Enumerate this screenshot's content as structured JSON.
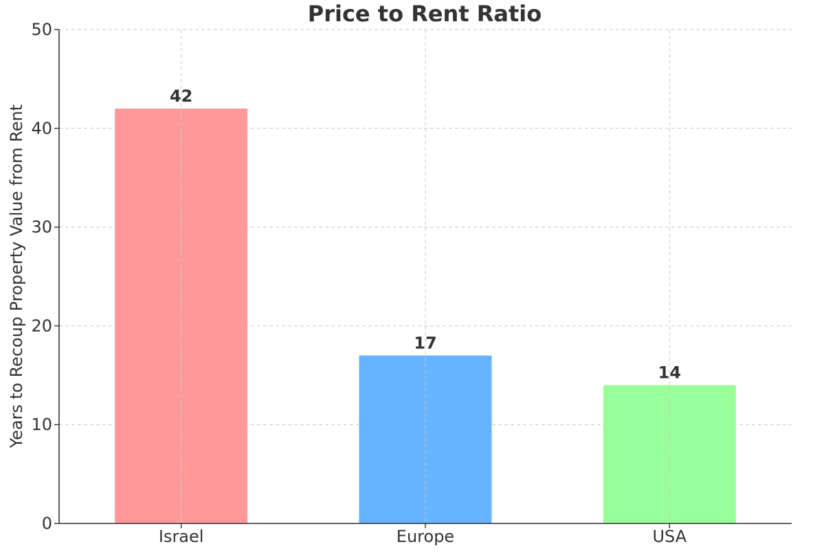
{
  "chart_data": {
    "type": "bar",
    "title": "Price to Rent Ratio",
    "xlabel": "",
    "ylabel": "Years to Recoup Property Value from Rent",
    "categories": [
      "Israel",
      "Europe",
      "USA"
    ],
    "values": [
      42,
      17,
      14
    ],
    "colors": [
      "#ff9999",
      "#66b3ff",
      "#99ff99"
    ],
    "ylim": [
      0,
      50
    ],
    "yticks": [
      "0",
      "10",
      "20",
      "30",
      "40",
      "50"
    ],
    "grid": true,
    "data_labels": [
      "42",
      "17",
      "14"
    ],
    "legend": "none"
  }
}
